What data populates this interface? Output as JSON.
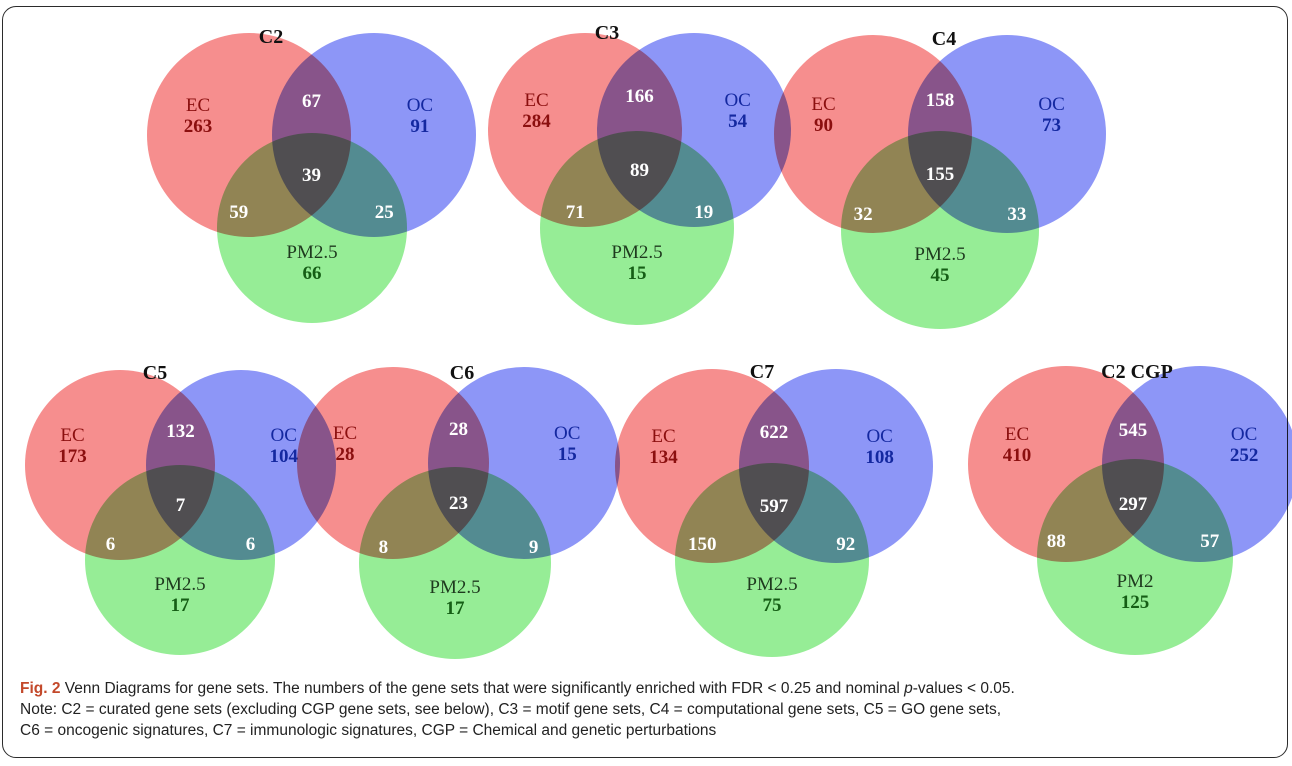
{
  "panels": [
    {
      "title": "C2",
      "ec": {
        "label": "EC",
        "count": "263"
      },
      "oc": {
        "label": "OC",
        "count": "91"
      },
      "pm": {
        "label": "PM2.5",
        "count": "66"
      },
      "ec_oc": "67",
      "all": "39",
      "ec_pm": "59",
      "oc_pm": "25"
    },
    {
      "title": "C3",
      "ec": {
        "label": "EC",
        "count": "284"
      },
      "oc": {
        "label": "OC",
        "count": "54"
      },
      "pm": {
        "label": "PM2.5",
        "count": "15"
      },
      "ec_oc": "166",
      "all": "89",
      "ec_pm": "71",
      "oc_pm": "19"
    },
    {
      "title": "C4",
      "ec": {
        "label": "EC",
        "count": "90"
      },
      "oc": {
        "label": "OC",
        "count": "73"
      },
      "pm": {
        "label": "PM2.5",
        "count": "45"
      },
      "ec_oc": "158",
      "all": "155",
      "ec_pm": "32",
      "oc_pm": "33"
    },
    {
      "title": "C5",
      "ec": {
        "label": "EC",
        "count": "173"
      },
      "oc": {
        "label": "OC",
        "count": "104"
      },
      "pm": {
        "label": "PM2.5",
        "count": "17"
      },
      "ec_oc": "132",
      "all": "7",
      "ec_pm": "6",
      "oc_pm": "6"
    },
    {
      "title": "C6",
      "ec": {
        "label": "EC",
        "count": "28"
      },
      "oc": {
        "label": "OC",
        "count": "15"
      },
      "pm": {
        "label": "PM2.5",
        "count": "17"
      },
      "ec_oc": "28",
      "all": "23",
      "ec_pm": "8",
      "oc_pm": "9"
    },
    {
      "title": "C7",
      "ec": {
        "label": "EC",
        "count": "134"
      },
      "oc": {
        "label": "OC",
        "count": "108"
      },
      "pm": {
        "label": "PM2.5",
        "count": "75"
      },
      "ec_oc": "622",
      "all": "597",
      "ec_pm": "150",
      "oc_pm": "92"
    },
    {
      "title": "C2 CGP",
      "ec": {
        "label": "EC",
        "count": "410"
      },
      "oc": {
        "label": "OC",
        "count": "252"
      },
      "pm": {
        "label": "PM2",
        "count": "125"
      },
      "ec_oc": "545",
      "all": "297",
      "ec_pm": "88",
      "oc_pm": "57"
    }
  ],
  "colors": {
    "ec_fill": "#f46e6e",
    "oc_fill": "#6d78f5",
    "pm_fill": "#79e879",
    "ec_text": "#8b0f0f",
    "oc_text": "#1428a0",
    "pm_text": "#155e15",
    "caption_label": "#c3492b"
  },
  "caption": {
    "label": "Fig. 2",
    "text": " Venn Diagrams for gene sets. The numbers of the gene sets that were significantly enriched with FDR < 0.25 and nominal ",
    "p_italic": "p",
    "text_after": "-values < 0.05.",
    "note_line1": "Note: C2 = curated gene sets (excluding CGP gene sets, see below), C3 = motif gene sets, C4 = computational gene sets, C5 = GO gene sets,",
    "note_line2": "C6 = oncogenic signatures, C7 = immunologic signatures, CGP = Chemical and genetic perturbations"
  }
}
